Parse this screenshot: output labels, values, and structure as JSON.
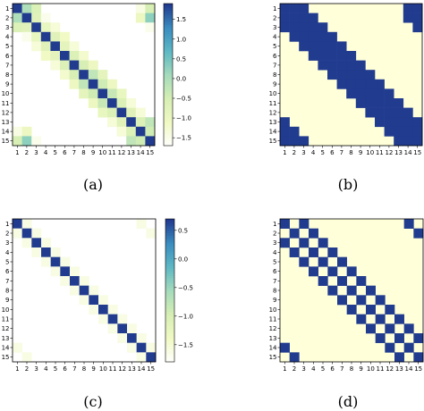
{
  "colors": {
    "white": "#ffffff",
    "pale": "#f1f9c4",
    "light": "#d7efb4",
    "mint": "#a6dbbb",
    "teal": "#5fb9c4",
    "mid_blue": "#3a8dc0",
    "dark": "#213b8f",
    "cream": "#ffffd9"
  },
  "chart_data": [
    {
      "type": "heatmap",
      "caption": "(a)",
      "x_ticks": [
        "1",
        "2",
        "3",
        "4",
        "5",
        "6",
        "7",
        "8",
        "9",
        "10",
        "11",
        "12",
        "13",
        "14",
        "15"
      ],
      "y_ticks": [
        "1",
        "2",
        "3",
        "4",
        "5",
        "6",
        "7",
        "8",
        "9",
        "10",
        "11",
        "12",
        "13",
        "14",
        "15"
      ],
      "colorbar": {
        "ticks": [
          "1.5",
          "1.0",
          "0.5",
          "0.0",
          "−0.5",
          "−1.0",
          "−1.5"
        ],
        "vmin": -1.7,
        "vmax": 1.9
      },
      "matrix": [
        [
          1.9,
          0.0,
          -0.6,
          null,
          null,
          null,
          null,
          null,
          null,
          null,
          null,
          null,
          null,
          -1.4,
          -0.5
        ],
        [
          0.0,
          1.9,
          -0.7,
          -1.5,
          null,
          null,
          null,
          null,
          null,
          null,
          null,
          null,
          null,
          -1.0,
          0.3
        ],
        [
          -0.6,
          -0.7,
          1.9,
          -0.9,
          -1.3,
          null,
          null,
          null,
          null,
          null,
          null,
          null,
          null,
          null,
          -1.5
        ],
        [
          null,
          -1.5,
          -0.9,
          1.9,
          -0.7,
          -1.1,
          null,
          null,
          null,
          null,
          null,
          null,
          null,
          null,
          null
        ],
        [
          null,
          null,
          -1.3,
          -0.7,
          1.9,
          -0.8,
          -1.3,
          null,
          null,
          null,
          null,
          null,
          null,
          null,
          null
        ],
        [
          null,
          null,
          null,
          -1.1,
          -0.8,
          1.9,
          -0.6,
          -1.2,
          null,
          null,
          null,
          null,
          null,
          null,
          null
        ],
        [
          null,
          null,
          null,
          null,
          -1.3,
          -0.6,
          1.9,
          -0.5,
          -1.0,
          null,
          null,
          null,
          null,
          null,
          null
        ],
        [
          null,
          null,
          null,
          null,
          null,
          -1.2,
          -0.5,
          1.9,
          -0.2,
          -0.8,
          null,
          null,
          null,
          null,
          null
        ],
        [
          null,
          null,
          null,
          null,
          null,
          null,
          -1.0,
          -0.2,
          1.9,
          -0.4,
          -1.0,
          null,
          null,
          null,
          null
        ],
        [
          null,
          null,
          null,
          null,
          null,
          null,
          null,
          -0.8,
          -0.4,
          1.9,
          -0.3,
          -0.9,
          null,
          null,
          null
        ],
        [
          null,
          null,
          null,
          null,
          null,
          null,
          null,
          null,
          -1.0,
          -0.3,
          1.9,
          -0.6,
          -1.3,
          null,
          null
        ],
        [
          null,
          null,
          null,
          null,
          null,
          null,
          null,
          null,
          null,
          -0.9,
          -0.6,
          1.9,
          -0.7,
          -1.3,
          null
        ],
        [
          null,
          null,
          null,
          null,
          null,
          null,
          null,
          null,
          null,
          null,
          -1.3,
          -0.7,
          1.9,
          -0.6,
          -0.2
        ],
        [
          -1.4,
          -1.0,
          null,
          null,
          null,
          null,
          null,
          null,
          null,
          null,
          null,
          -1.3,
          -0.6,
          1.9,
          -0.4
        ],
        [
          -0.5,
          0.3,
          -1.5,
          null,
          null,
          null,
          null,
          null,
          null,
          null,
          null,
          null,
          -0.2,
          -0.4,
          1.9
        ]
      ]
    },
    {
      "type": "heatmap",
      "caption": "(b)",
      "x_ticks": [
        "1",
        "2",
        "3",
        "4",
        "5",
        "6",
        "7",
        "8",
        "9",
        "10",
        "11",
        "12",
        "13",
        "14",
        "15"
      ],
      "y_ticks": [
        "1",
        "2",
        "3",
        "4",
        "5",
        "6",
        "7",
        "8",
        "9",
        "10",
        "11",
        "12",
        "13",
        "14",
        "15"
      ],
      "binary": true,
      "matrix": [
        [
          1,
          1,
          1,
          0,
          0,
          0,
          0,
          0,
          0,
          0,
          0,
          0,
          0,
          1,
          1
        ],
        [
          1,
          1,
          1,
          1,
          0,
          0,
          0,
          0,
          0,
          0,
          0,
          0,
          0,
          1,
          1
        ],
        [
          1,
          1,
          1,
          1,
          1,
          0,
          0,
          0,
          0,
          0,
          0,
          0,
          0,
          0,
          1
        ],
        [
          0,
          1,
          1,
          1,
          1,
          1,
          0,
          0,
          0,
          0,
          0,
          0,
          0,
          0,
          0
        ],
        [
          0,
          0,
          1,
          1,
          1,
          1,
          1,
          0,
          0,
          0,
          0,
          0,
          0,
          0,
          0
        ],
        [
          0,
          0,
          0,
          1,
          1,
          1,
          1,
          1,
          0,
          0,
          0,
          0,
          0,
          0,
          0
        ],
        [
          0,
          0,
          0,
          0,
          1,
          1,
          1,
          1,
          1,
          0,
          0,
          0,
          0,
          0,
          0
        ],
        [
          0,
          0,
          0,
          0,
          0,
          1,
          1,
          1,
          1,
          1,
          0,
          0,
          0,
          0,
          0
        ],
        [
          0,
          0,
          0,
          0,
          0,
          0,
          1,
          1,
          1,
          1,
          1,
          0,
          0,
          0,
          0
        ],
        [
          0,
          0,
          0,
          0,
          0,
          0,
          0,
          1,
          1,
          1,
          1,
          1,
          0,
          0,
          0
        ],
        [
          0,
          0,
          0,
          0,
          0,
          0,
          0,
          0,
          1,
          1,
          1,
          1,
          1,
          0,
          0
        ],
        [
          0,
          0,
          0,
          0,
          0,
          0,
          0,
          0,
          0,
          1,
          1,
          1,
          1,
          1,
          0
        ],
        [
          1,
          0,
          0,
          0,
          0,
          0,
          0,
          0,
          0,
          0,
          1,
          1,
          1,
          1,
          1
        ],
        [
          1,
          1,
          0,
          0,
          0,
          0,
          0,
          0,
          0,
          0,
          0,
          1,
          1,
          1,
          1
        ],
        [
          1,
          1,
          1,
          0,
          0,
          0,
          0,
          0,
          0,
          0,
          0,
          0,
          1,
          1,
          1
        ]
      ]
    },
    {
      "type": "heatmap",
      "caption": "(c)",
      "x_ticks": [
        "1",
        "2",
        "3",
        "4",
        "5",
        "6",
        "7",
        "8",
        "9",
        "10",
        "11",
        "12",
        "13",
        "14",
        "15"
      ],
      "y_ticks": [
        "1",
        "2",
        "3",
        "4",
        "5",
        "6",
        "7",
        "8",
        "9",
        "10",
        "11",
        "12",
        "13",
        "14",
        "15"
      ],
      "colorbar": {
        "ticks": [
          "0.5",
          "0.0",
          "−0.5",
          "−1.0",
          "−1.5"
        ],
        "vmin": -1.8,
        "vmax": 0.7
      },
      "matrix": [
        [
          0.7,
          -1.6,
          null,
          null,
          null,
          null,
          null,
          null,
          null,
          null,
          null,
          null,
          null,
          -1.6,
          null
        ],
        [
          -1.6,
          0.7,
          -1.6,
          null,
          null,
          null,
          null,
          null,
          null,
          null,
          null,
          null,
          null,
          null,
          -1.6
        ],
        [
          null,
          -1.6,
          0.7,
          -1.6,
          null,
          null,
          null,
          null,
          null,
          null,
          null,
          null,
          null,
          null,
          null
        ],
        [
          null,
          null,
          -1.6,
          0.7,
          -1.6,
          null,
          null,
          null,
          null,
          null,
          null,
          null,
          null,
          null,
          null
        ],
        [
          null,
          null,
          null,
          -1.6,
          0.7,
          -1.6,
          null,
          null,
          null,
          null,
          null,
          null,
          null,
          null,
          null
        ],
        [
          null,
          null,
          null,
          null,
          -1.6,
          0.7,
          -1.6,
          null,
          null,
          null,
          null,
          null,
          null,
          null,
          null
        ],
        [
          null,
          null,
          null,
          null,
          null,
          -1.6,
          0.7,
          -1.6,
          null,
          null,
          null,
          null,
          null,
          null,
          null
        ],
        [
          null,
          null,
          null,
          null,
          null,
          null,
          -1.6,
          0.7,
          -1.6,
          null,
          null,
          null,
          null,
          null,
          null
        ],
        [
          null,
          null,
          null,
          null,
          null,
          null,
          null,
          -1.6,
          0.7,
          -1.6,
          null,
          null,
          null,
          null,
          null
        ],
        [
          null,
          null,
          null,
          null,
          null,
          null,
          null,
          null,
          -1.6,
          0.7,
          -1.6,
          null,
          null,
          null,
          null
        ],
        [
          null,
          null,
          null,
          null,
          null,
          null,
          null,
          null,
          null,
          -1.6,
          0.7,
          -1.6,
          null,
          null,
          null
        ],
        [
          null,
          null,
          null,
          null,
          null,
          null,
          null,
          null,
          null,
          null,
          -1.6,
          0.7,
          -1.6,
          null,
          null
        ],
        [
          null,
          null,
          null,
          null,
          null,
          null,
          null,
          null,
          null,
          null,
          null,
          -1.6,
          0.7,
          -1.6,
          null
        ],
        [
          -1.6,
          null,
          null,
          null,
          null,
          null,
          null,
          null,
          null,
          null,
          null,
          null,
          -1.6,
          0.7,
          -1.6
        ],
        [
          null,
          -1.6,
          null,
          null,
          null,
          null,
          null,
          null,
          null,
          null,
          null,
          null,
          null,
          -1.6,
          0.7
        ]
      ]
    },
    {
      "type": "heatmap",
      "caption": "(d)",
      "x_ticks": [
        "1",
        "2",
        "3",
        "4",
        "5",
        "6",
        "7",
        "8",
        "9",
        "10",
        "11",
        "12",
        "13",
        "14",
        "15"
      ],
      "y_ticks": [
        "1",
        "2",
        "3",
        "4",
        "5",
        "6",
        "7",
        "8",
        "9",
        "10",
        "11",
        "12",
        "13",
        "14",
        "15"
      ],
      "binary": true,
      "matrix": [
        [
          1,
          0,
          1,
          0,
          0,
          0,
          0,
          0,
          0,
          0,
          0,
          0,
          0,
          1,
          0
        ],
        [
          0,
          1,
          0,
          1,
          0,
          0,
          0,
          0,
          0,
          0,
          0,
          0,
          0,
          0,
          1
        ],
        [
          1,
          0,
          1,
          0,
          1,
          0,
          0,
          0,
          0,
          0,
          0,
          0,
          0,
          0,
          0
        ],
        [
          0,
          1,
          0,
          1,
          0,
          1,
          0,
          0,
          0,
          0,
          0,
          0,
          0,
          0,
          0
        ],
        [
          0,
          0,
          1,
          0,
          1,
          0,
          1,
          0,
          0,
          0,
          0,
          0,
          0,
          0,
          0
        ],
        [
          0,
          0,
          0,
          1,
          0,
          1,
          0,
          1,
          0,
          0,
          0,
          0,
          0,
          0,
          0
        ],
        [
          0,
          0,
          0,
          0,
          1,
          0,
          1,
          0,
          1,
          0,
          0,
          0,
          0,
          0,
          0
        ],
        [
          0,
          0,
          0,
          0,
          0,
          1,
          0,
          1,
          0,
          1,
          0,
          0,
          0,
          0,
          0
        ],
        [
          0,
          0,
          0,
          0,
          0,
          0,
          1,
          0,
          1,
          0,
          1,
          0,
          0,
          0,
          0
        ],
        [
          0,
          0,
          0,
          0,
          0,
          0,
          0,
          1,
          0,
          1,
          0,
          1,
          0,
          0,
          0
        ],
        [
          0,
          0,
          0,
          0,
          0,
          0,
          0,
          0,
          1,
          0,
          1,
          0,
          1,
          0,
          0
        ],
        [
          0,
          0,
          0,
          0,
          0,
          0,
          0,
          0,
          0,
          1,
          0,
          1,
          0,
          1,
          0
        ],
        [
          0,
          0,
          0,
          0,
          0,
          0,
          0,
          0,
          0,
          0,
          1,
          0,
          1,
          0,
          1
        ],
        [
          1,
          0,
          0,
          0,
          0,
          0,
          0,
          0,
          0,
          0,
          0,
          1,
          0,
          1,
          0
        ],
        [
          0,
          1,
          0,
          0,
          0,
          0,
          0,
          0,
          0,
          0,
          0,
          0,
          1,
          0,
          1
        ]
      ]
    }
  ]
}
